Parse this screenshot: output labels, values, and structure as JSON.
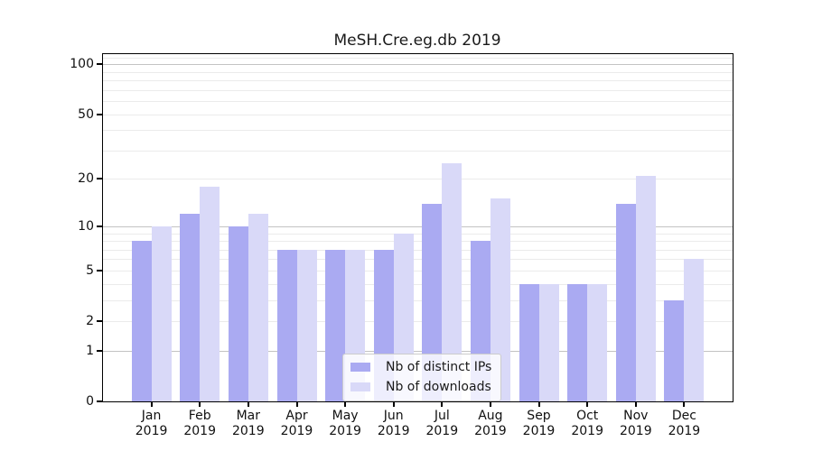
{
  "title": "MeSH.Cre.eg.db 2019",
  "chart_data": {
    "type": "bar",
    "title": "MeSH.Cre.eg.db 2019",
    "categories": [
      "Jan",
      "Feb",
      "Mar",
      "Apr",
      "May",
      "Jun",
      "Jul",
      "Aug",
      "Sep",
      "Oct",
      "Nov",
      "Dec"
    ],
    "category_year": "2019",
    "series": [
      {
        "name": "Nb of distinct IPs",
        "color": "#aaaaf2",
        "values": [
          8,
          12,
          10,
          7,
          7,
          7,
          14,
          8,
          4,
          4,
          14,
          3
        ]
      },
      {
        "name": "Nb of downloads",
        "color": "#d9d9f8",
        "values": [
          10,
          18,
          12,
          7,
          7,
          9,
          25,
          15,
          4,
          4,
          21,
          6
        ]
      }
    ],
    "xlabel": "",
    "ylabel": "",
    "yscale": "log1p",
    "ylim": [
      0,
      115
    ],
    "yticks": [
      0,
      1,
      2,
      5,
      10,
      20,
      50,
      100
    ],
    "grid": "on",
    "grid_major_at": [
      1,
      10,
      100
    ],
    "grid_minor_at": [
      2,
      3,
      4,
      5,
      6,
      7,
      8,
      9,
      20,
      30,
      40,
      50,
      60,
      70,
      80,
      90,
      110
    ],
    "legend_position": "inside-bottom-center"
  },
  "legend": {
    "items": [
      {
        "label": "Nb of distinct IPs",
        "color": "#aaaaf2"
      },
      {
        "label": "Nb of downloads",
        "color": "#d9d9f8"
      }
    ]
  }
}
